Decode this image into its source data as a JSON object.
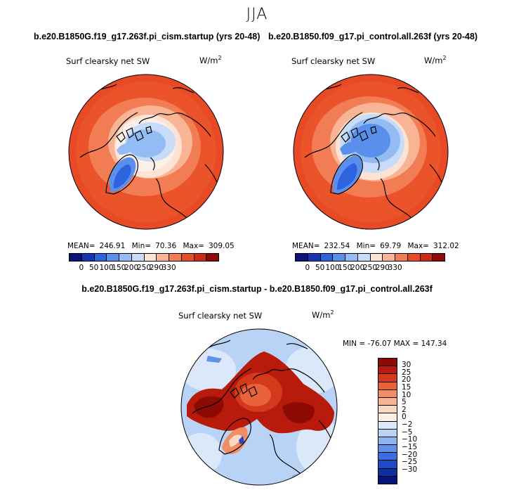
{
  "title": "JJA",
  "colors": {
    "seq": [
      "#0a1478",
      "#1535b5",
      "#2e63e0",
      "#5a90ec",
      "#93bbf4",
      "#c8dcfa",
      "#fde3d3",
      "#f8b494",
      "#f27c53",
      "#e84a25",
      "#cc2a12",
      "#8e0a05"
    ],
    "diverging": [
      "#8e0a05",
      "#b81b0b",
      "#d5391b",
      "#e8623a",
      "#f18c64",
      "#f8b294",
      "#fcd8c3",
      "#fdf0e4",
      "#dbe8fa",
      "#b9d3f6",
      "#8db6f0",
      "#5f92e8",
      "#3a6ddd",
      "#1f4ac6",
      "#0e2da0",
      "#061678"
    ]
  },
  "chart_data": [
    {
      "type": "heatmap",
      "projection": "north-polar-stereographic",
      "title": "b.e20.B1850G.f19_g17.263f.pi_cism.startup (yrs 20-48)",
      "variable": "Surf clearsky net SW",
      "units": "W/m",
      "units_sup": "2",
      "stats": {
        "mean_label": "MEAN=",
        "mean": "246.91",
        "min_label": "Min=",
        "min": "70.36",
        "max_label": "Max=",
        "max": "309.05"
      },
      "colorbar_ticks": [
        "0",
        "50",
        "100",
        "150",
        "200",
        "250",
        "290",
        "330"
      ]
    },
    {
      "type": "heatmap",
      "projection": "north-polar-stereographic",
      "title": "b.e20.B1850.f09_g17.pi_control.all.263f (yrs 20-48)",
      "variable": "Surf clearsky net SW",
      "units": "W/m",
      "units_sup": "2",
      "stats": {
        "mean_label": "MEAN=",
        "mean": "232.54",
        "min_label": "Min=",
        "min": "69.79",
        "max_label": "Max=",
        "max": "312.02"
      },
      "colorbar_ticks": [
        "0",
        "50",
        "100",
        "150",
        "200",
        "250",
        "290",
        "330"
      ]
    },
    {
      "type": "heatmap",
      "projection": "north-polar-stereographic",
      "title": "b.e20.B1850G.f19_g17.263f.pi_cism.startup - b.e20.B1850.f09_g17.pi_control.all.263f",
      "variable": "Surf clearsky net SW",
      "units": "W/m",
      "units_sup": "2",
      "stats_text": "MIN = -76.07 MAX = 147.34",
      "colorbar_ticks": [
        "30",
        "25",
        "20",
        "15",
        "10",
        "5",
        "2",
        "0",
        "−2",
        "−5",
        "−10",
        "−15",
        "−20",
        "−25",
        "−30"
      ]
    }
  ]
}
